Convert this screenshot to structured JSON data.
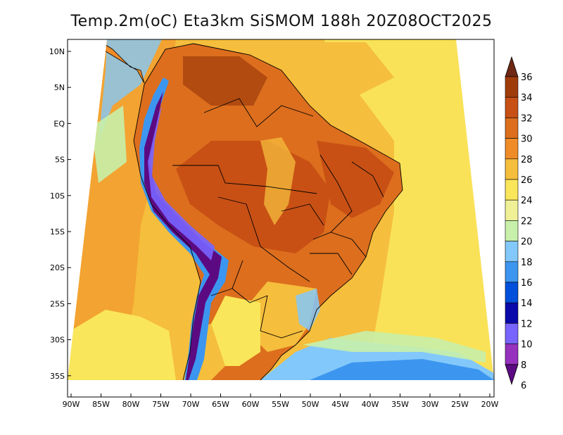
{
  "title": "Temp.2m(oC) Eta3km SiSMOM 188h 20Z08OCT2025",
  "lat_labels": [
    "10N",
    "5N",
    "EQ",
    "5S",
    "10S",
    "15S",
    "20S",
    "25S",
    "30S",
    "35S"
  ],
  "lon_labels": [
    "90W",
    "85W",
    "80W",
    "75W",
    "70W",
    "65W",
    "60W",
    "55W",
    "50W",
    "45W",
    "40W",
    "35W",
    "30W",
    "25W",
    "20W"
  ],
  "colorbar": {
    "levels": [
      6,
      8,
      10,
      12,
      14,
      16,
      18,
      20,
      22,
      24,
      26,
      28,
      30,
      32,
      34,
      36
    ],
    "colors": [
      "#5c0a82",
      "#9632be",
      "#7864ff",
      "#0a0aaa",
      "#0050dc",
      "#3c96f0",
      "#82c8fa",
      "#c8f0aa",
      "#f0f096",
      "#fae65a",
      "#f5be3c",
      "#f08c28",
      "#dc6e1e",
      "#c85014",
      "#a03c0a",
      "#6e2814"
    ],
    "labels": [
      "6",
      "8",
      "10",
      "12",
      "14",
      "16",
      "18",
      "20",
      "22",
      "24",
      "26",
      "28",
      "30",
      "32",
      "34",
      "36"
    ]
  }
}
